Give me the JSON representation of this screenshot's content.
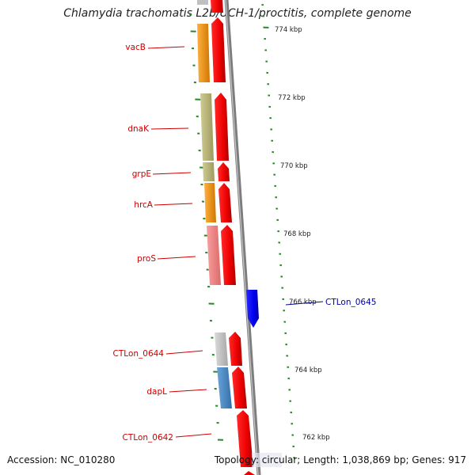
{
  "title": "Chlamydia trachomatis L2b/UCH-1/proctitis, complete genome",
  "accession": "Accession: NC_010280",
  "summary": "Topology: circular; Length: 1,038,869 bp; Genes: 917",
  "scale_ticks": [
    "774 kbp",
    "772 kbp",
    "770 kbp",
    "768 kbp",
    "766 kbp",
    "764 kbp",
    "762 kbp"
  ],
  "genes": [
    {
      "name": "vacB",
      "strand": "minus",
      "cog_color": "#f0900c"
    },
    {
      "name": "dnaK",
      "strand": "minus",
      "cog_color": "#b7b478"
    },
    {
      "name": "grpE",
      "strand": "minus",
      "cog_color": "#b7b478"
    },
    {
      "name": "hrcA",
      "strand": "minus",
      "cog_color": "#f0900c"
    },
    {
      "name": "proS",
      "strand": "minus",
      "cog_color": "#f08080"
    },
    {
      "name": "CTLon_0645",
      "strand": "plus",
      "cog_color": "#0000ee"
    },
    {
      "name": "CTLon_0644",
      "strand": "minus",
      "cog_color": "#c0c0c0"
    },
    {
      "name": "dapL",
      "strand": "minus",
      "cog_color": "#4a86c0"
    },
    {
      "name": "CTLon_0642",
      "strand": "minus",
      "cog_color": null
    }
  ],
  "colors": {
    "gene_strand_minus": "#ee0000",
    "gene_strand_plus": "#0000ee",
    "backbone": "#8c8c8c",
    "ticks": "#228b22",
    "label_red": "#cc0000",
    "label_blue": "#000099"
  }
}
